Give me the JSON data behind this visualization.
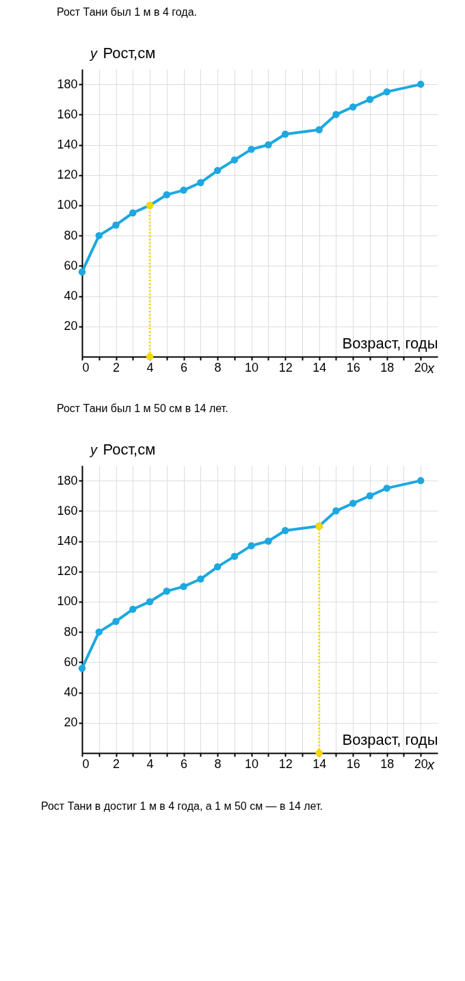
{
  "chart_data": [
    {
      "type": "line",
      "title": "Рост Тани был 1 м в 4 года.",
      "xlabel": "Возраст, годы",
      "ylabel": "Рост,см",
      "annotations": [
        "y",
        "x"
      ],
      "xlim": [
        0,
        21
      ],
      "ylim": [
        0,
        190
      ],
      "xticks": [
        0,
        {
          "value": 1,
          "label": null
        },
        2,
        {
          "value": 3,
          "label": null
        },
        4,
        {
          "value": 5,
          "label": null
        },
        6,
        {
          "value": 7,
          "label": null
        },
        8,
        {
          "value": 9,
          "label": null
        },
        10,
        {
          "value": 11,
          "label": null
        },
        12,
        {
          "value": 13,
          "label": null
        },
        14,
        {
          "value": 15,
          "label": null
        },
        16,
        {
          "value": 17,
          "label": null
        },
        18,
        {
          "value": 19,
          "label": null
        },
        20
      ],
      "yticks": [
        20,
        40,
        60,
        80,
        100,
        120,
        140,
        160,
        180
      ],
      "grid": true,
      "marker": "circle",
      "line_style": "solid",
      "series": [
        {
          "type": "line",
          "color": "#1ca8e0",
          "x": [
            0,
            1,
            2,
            3,
            4,
            5,
            6,
            7,
            8,
            9,
            10,
            11,
            12,
            14,
            15,
            16,
            17,
            18,
            20
          ],
          "values": [
            56,
            80,
            87,
            95,
            100,
            107,
            110,
            115,
            123,
            130,
            137,
            140,
            147,
            150,
            160,
            165,
            170,
            175,
            180
          ]
        },
        {
          "type": "scatter",
          "color": "#f5d800",
          "x": [
            4,
            4
          ],
          "values": [
            0,
            100
          ]
        }
      ],
      "ref_lines": [
        {
          "axis": "x",
          "value": 4,
          "color": "#f5d800",
          "line_style": "dotted"
        }
      ]
    },
    {
      "type": "line",
      "title": "Рост Тани был 1 м 50 см в 14 лет.",
      "xlabel": "Возраст, годы",
      "ylabel": "Рост,см",
      "annotations": [
        "y",
        "x",
        "Рост Тани в достиг 1 м в 4 года, а 1 м 50 см — в 14 лет."
      ],
      "xlim": [
        0,
        21
      ],
      "ylim": [
        0,
        190
      ],
      "xticks": [
        0,
        {
          "value": 1,
          "label": null
        },
        2,
        {
          "value": 3,
          "label": null
        },
        4,
        {
          "value": 5,
          "label": null
        },
        6,
        {
          "value": 7,
          "label": null
        },
        8,
        {
          "value": 9,
          "label": null
        },
        10,
        {
          "value": 11,
          "label": null
        },
        12,
        {
          "value": 13,
          "label": null
        },
        14,
        {
          "value": 15,
          "label": null
        },
        16,
        {
          "value": 17,
          "label": null
        },
        18,
        {
          "value": 19,
          "label": null
        },
        20
      ],
      "yticks": [
        20,
        40,
        60,
        80,
        100,
        120,
        140,
        160,
        180
      ],
      "grid": true,
      "marker": "circle",
      "line_style": "solid",
      "series": [
        {
          "type": "line",
          "color": "#1ca8e0",
          "x": [
            0,
            1,
            2,
            3,
            4,
            5,
            6,
            7,
            8,
            9,
            10,
            11,
            12,
            14,
            15,
            16,
            17,
            18,
            20
          ],
          "values": [
            56,
            80,
            87,
            95,
            100,
            107,
            110,
            115,
            123,
            130,
            137,
            140,
            147,
            150,
            160,
            165,
            170,
            175,
            180
          ]
        },
        {
          "type": "scatter",
          "color": "#f5d800",
          "x": [
            14,
            14
          ],
          "values": [
            0,
            150
          ]
        }
      ],
      "ref_lines": [
        {
          "axis": "x",
          "value": 14,
          "color": "#f5d800",
          "line_style": "dotted"
        }
      ]
    }
  ]
}
